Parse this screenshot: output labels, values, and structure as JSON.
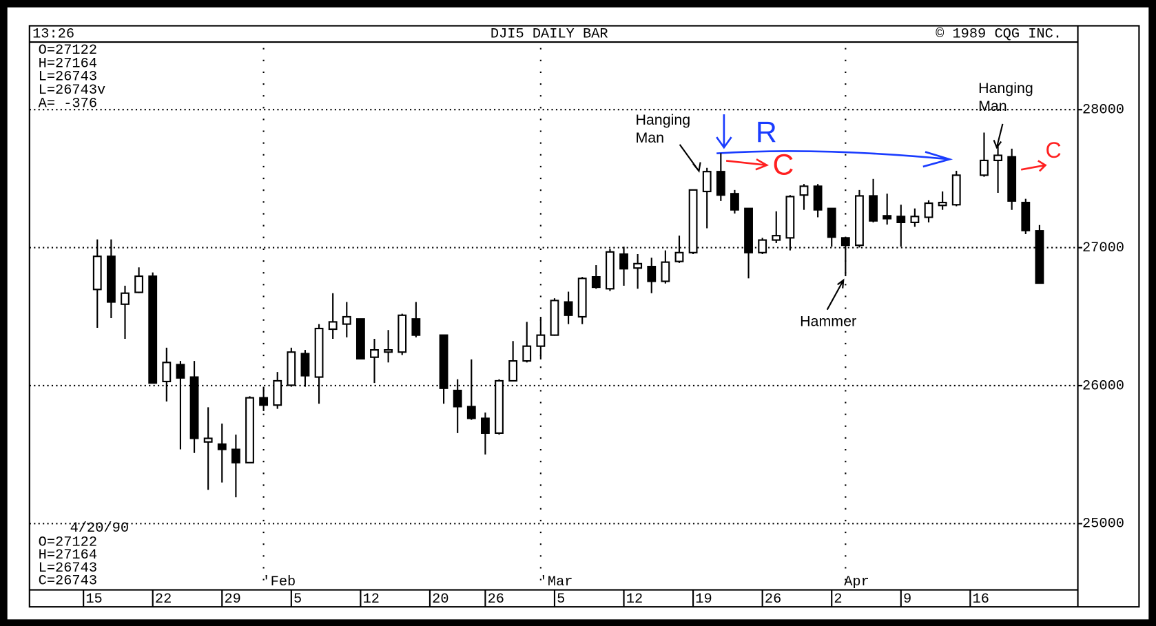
{
  "chart_data": {
    "type": "candlestick",
    "header": {
      "time": "13:26",
      "title": "DJI5 DAILY BAR",
      "copyright": "© 1989 CQG INC."
    },
    "top_info": [
      "O=27122",
      "H=27164",
      "L=26743",
      "L=26743v",
      "A= -376"
    ],
    "bottom_info": {
      "date": "4/20/90",
      "lines": [
        "O=27122",
        "H=27164",
        "L=26743",
        "C=26743"
      ]
    },
    "open": [
      26697,
      26937,
      26590,
      26676,
      26793,
      26030,
      26152,
      26062,
      25592,
      25576,
      25538,
      25442,
      25912,
      25859,
      26003,
      26232,
      26062,
      26409,
      26446,
      26483,
      26206,
      26243,
      26243,
      26483,
      null,
      26366,
      25965,
      25848,
      25763,
      25656,
      26035,
      26179,
      26286,
      26366,
      26606,
      26499,
      26788,
      26702,
      26953,
      26852,
      26863,
      26756,
      26900,
      26964,
      27407,
      27551,
      27391,
      27284,
      26964,
      27055,
      27071,
      27381,
      27445,
      27284,
      27071,
      27017,
      27375,
      27231,
      27226,
      27183,
      27220,
      27306,
      27311,
      null,
      27525,
      27632,
      27658,
      27327,
      27122
    ],
    "high": [
      27060,
      27060,
      26724,
      26857,
      26820,
      26275,
      26179,
      26179,
      25843,
      25725,
      25645,
      25923,
      25992,
      26099,
      26275,
      26259,
      26446,
      26670,
      26606,
      26483,
      26339,
      26403,
      26521,
      26606,
      null,
      26366,
      26046,
      26190,
      25805,
      26046,
      26323,
      26462,
      26499,
      26633,
      26681,
      26788,
      26873,
      26991,
      27007,
      26953,
      26927,
      26980,
      27087,
      27418,
      27578,
      27685,
      27418,
      27284,
      27071,
      27263,
      27381,
      27461,
      27461,
      27284,
      27071,
      27418,
      27498,
      27391,
      27311,
      27284,
      27343,
      27407,
      27557,
      null,
      27834,
      27738,
      27717,
      27354,
      27164
    ],
    "low": [
      26419,
      26489,
      26339,
      26670,
      26019,
      25885,
      25538,
      25512,
      25245,
      25298,
      25191,
      25442,
      25816,
      25832,
      25992,
      25992,
      25869,
      26339,
      26350,
      26195,
      26019,
      26168,
      26222,
      26350,
      null,
      25869,
      25656,
      25752,
      25501,
      25645,
      26030,
      26168,
      26190,
      26361,
      26446,
      26446,
      26702,
      26686,
      26724,
      26702,
      26670,
      26740,
      26889,
      26953,
      27140,
      27338,
      27247,
      26777,
      26953,
      27033,
      26980,
      27274,
      27220,
      27007,
      26793,
      27001,
      27183,
      27167,
      27007,
      27151,
      27183,
      27274,
      27300,
      null,
      27514,
      27397,
      27274,
      27098,
      26743
    ],
    "close": [
      26937,
      26606,
      26670,
      26793,
      26019,
      26168,
      26056,
      25618,
      25618,
      25538,
      25442,
      25912,
      25859,
      26035,
      26243,
      26072,
      26414,
      26462,
      26499,
      26195,
      26259,
      26259,
      26510,
      26366,
      null,
      25981,
      25848,
      25763,
      25656,
      26035,
      26179,
      26286,
      26366,
      26617,
      26510,
      26777,
      26713,
      26969,
      26847,
      26884,
      26756,
      26895,
      26964,
      27418,
      27551,
      27381,
      27274,
      26964,
      27055,
      27087,
      27370,
      27445,
      27274,
      27076,
      27017,
      27375,
      27194,
      27210,
      27183,
      27226,
      27322,
      27327,
      27525,
      null,
      27632,
      27669,
      27338,
      27124,
      26743
    ],
    "ylim": [
      24520,
      28490
    ],
    "yticks": [
      25000,
      26000,
      27000,
      28000
    ],
    "grid": true,
    "xticks": [
      {
        "value": 0,
        "label": "15"
      },
      {
        "value": 5,
        "label": "22"
      },
      {
        "value": 10,
        "label": "29"
      },
      {
        "value": 15,
        "label": "5"
      },
      {
        "value": 20,
        "label": "12"
      },
      {
        "value": 25,
        "label": "20"
      },
      {
        "value": 29,
        "label": "26"
      },
      {
        "value": 34,
        "label": "5"
      },
      {
        "value": 39,
        "label": "12"
      },
      {
        "value": 44,
        "label": "19"
      },
      {
        "value": 49,
        "label": "26"
      },
      {
        "value": 54,
        "label": "2"
      },
      {
        "value": 59,
        "label": "9"
      },
      {
        "value": 64,
        "label": "16"
      }
    ],
    "month_labels": [
      {
        "value": 12,
        "label": "'Feb"
      },
      {
        "value": 32,
        "label": "'Mar"
      },
      {
        "value": 54,
        "label": "Apr"
      }
    ],
    "annotations": [
      "Hanging",
      "Man",
      "Hanging",
      "Man",
      "Hammer",
      "R",
      "C",
      "C"
    ]
  }
}
